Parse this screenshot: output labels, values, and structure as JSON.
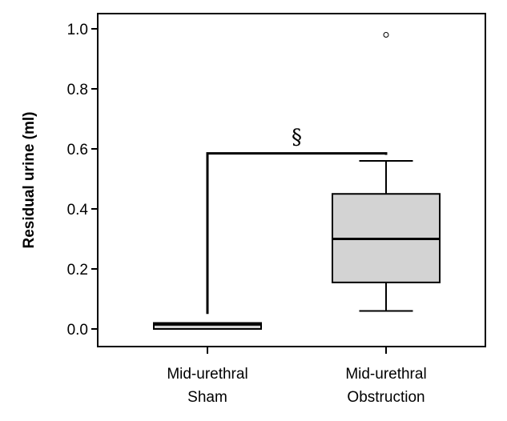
{
  "chart_data": {
    "type": "box",
    "title": "",
    "xlabel": "",
    "ylabel": "Residual urine (ml)",
    "ylim": [
      -0.03,
      1.05
    ],
    "yticks": [
      "0.0",
      "0.2",
      "0.4",
      "0.6",
      "0.8",
      "1.0"
    ],
    "ytick_values": [
      0.0,
      0.2,
      0.4,
      0.6,
      0.8,
      1.0
    ],
    "grid": false,
    "categories": [
      {
        "line1": "Mid-urethral",
        "line2": "Sham"
      },
      {
        "line1": "Mid-urethral",
        "line2": "Obstruction"
      }
    ],
    "boxes": [
      {
        "min": 0.0,
        "q1": 0.0,
        "median": 0.015,
        "q3": 0.02,
        "max": 0.02,
        "outliers": []
      },
      {
        "min": 0.06,
        "q1": 0.155,
        "median": 0.3,
        "q3": 0.45,
        "max": 0.56,
        "outliers": [
          0.98
        ]
      }
    ],
    "significance": {
      "symbol": "§",
      "y": 0.585,
      "left_y": 0.05,
      "right_y": 0.58
    },
    "box_fill": "#d3d3d3"
  }
}
